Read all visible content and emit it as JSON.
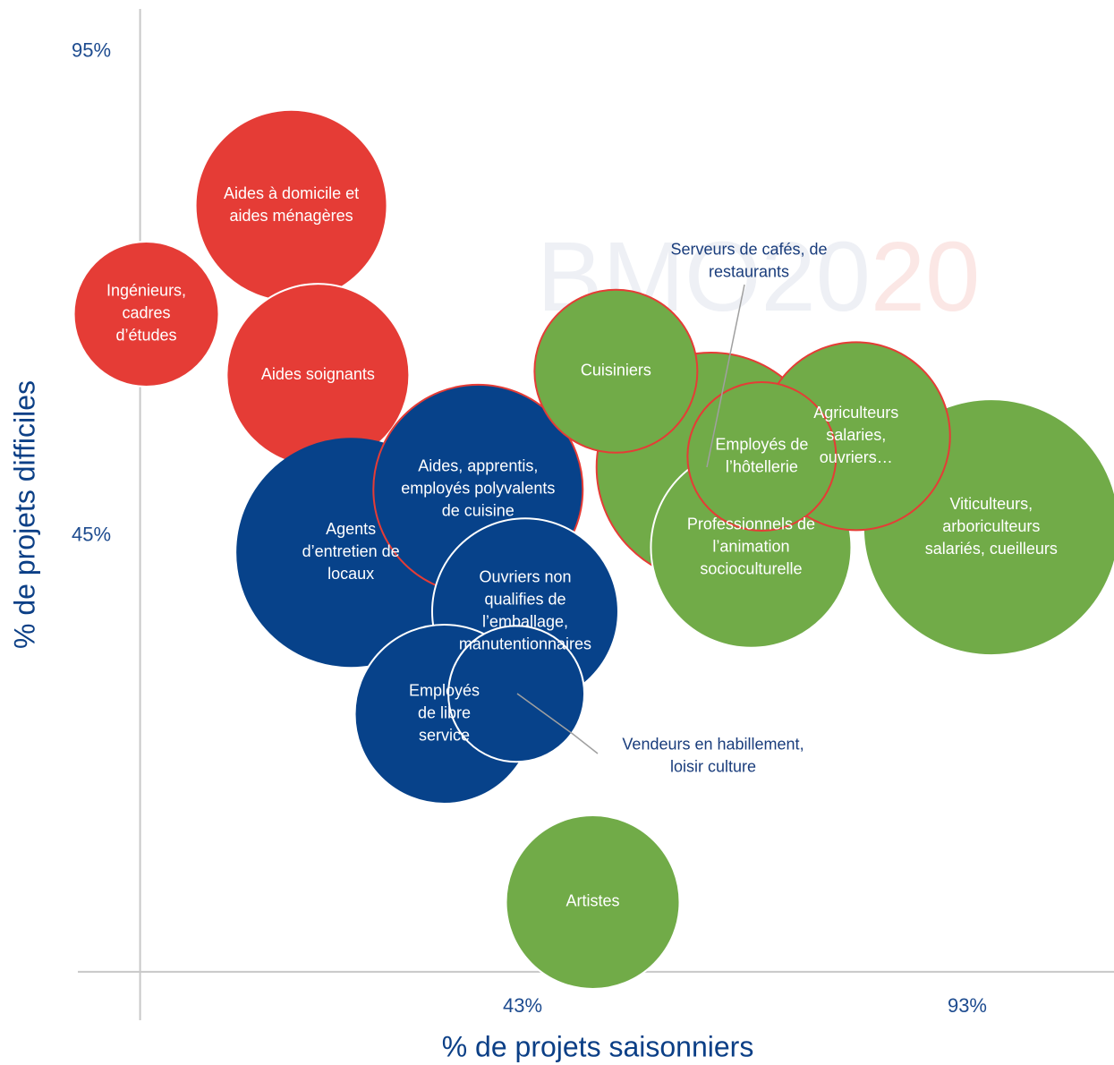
{
  "chart_data": {
    "type": "scatter",
    "xlabel": "% de projets saisonniers",
    "ylabel": "% de projets difficiles",
    "watermark": [
      "BMO20",
      "20"
    ],
    "xlim": [
      -7,
      109.5
    ],
    "ylim": [
      -5,
      99.4
    ],
    "xticks": [
      {
        "value": 43,
        "label": "43%"
      },
      {
        "value": 93,
        "label": "93%"
      }
    ],
    "yticks": [
      {
        "value": 45,
        "label": "45%"
      },
      {
        "value": 95,
        "label": "95%"
      }
    ],
    "grid": false,
    "labels": [
      [
        "Aides à domicile et",
        "aides ménagères"
      ],
      [
        "Ingénieurs,",
        "cadres",
        "d’études"
      ],
      [
        "Aides soignants"
      ],
      [
        "Agents",
        "d’entretien de",
        "locaux"
      ],
      [
        "Aides, apprentis,",
        "employés polyvalents",
        "de cuisine"
      ],
      [
        "Ouvriers non",
        "qualifies de",
        "l’emballage,",
        "manutentionnaires"
      ],
      [
        "Employés",
        "de libre",
        "service"
      ],
      [
        "Vendeurs en habillement,",
        "loisir culture"
      ],
      [
        "Serveurs de cafés, de",
        "restaurants"
      ],
      [
        "Cuisiniers"
      ],
      [
        "Viticulteurs,",
        "arboriculteurs",
        "salariés, cueilleurs"
      ],
      [
        "Professionnels de",
        "l’animation",
        "socioculturelle"
      ],
      [
        "Agriculteurs",
        "salaries,",
        "ouvriers…"
      ],
      [
        "Employés de",
        "l’hôtellerie"
      ],
      [
        "Artistes"
      ]
    ],
    "x": [
      17.0,
      0.7,
      20.0,
      23.7,
      38.0,
      43.3,
      34.2,
      42.3,
      64.2,
      53.5,
      95.7,
      68.7,
      80.5,
      69.9,
      50.9
    ],
    "y": [
      79.1,
      67.9,
      61.6,
      43.3,
      49.8,
      37.2,
      26.6,
      28.7,
      52.1,
      62.0,
      45.9,
      43.8,
      55.3,
      53.2,
      7.2
    ],
    "sizes": [
      107,
      81,
      102,
      127,
      117,
      104,
      100,
      76,
      128,
      91,
      143,
      112,
      105,
      83,
      97
    ],
    "colors": [
      "#e53c36",
      "#e53c36",
      "#e53c36",
      "#07428a",
      "#07428a",
      "#07428a",
      "#07428a",
      "#07428a",
      "#71ab48",
      "#71ab48",
      "#71ab48",
      "#71ab48",
      "#71ab48",
      "#71ab48",
      "#71ab48"
    ],
    "edgecolors": [
      "#ffffff",
      "#ffffff",
      "#ffffff",
      "#07428a",
      "#e53c36",
      "#ffffff",
      "#ffffff",
      "#ffffff",
      "#e53c36",
      "#e53c36",
      "#ffffff",
      "#ffffff",
      "#e53c36",
      "#e53c36",
      "#ffffff"
    ]
  }
}
